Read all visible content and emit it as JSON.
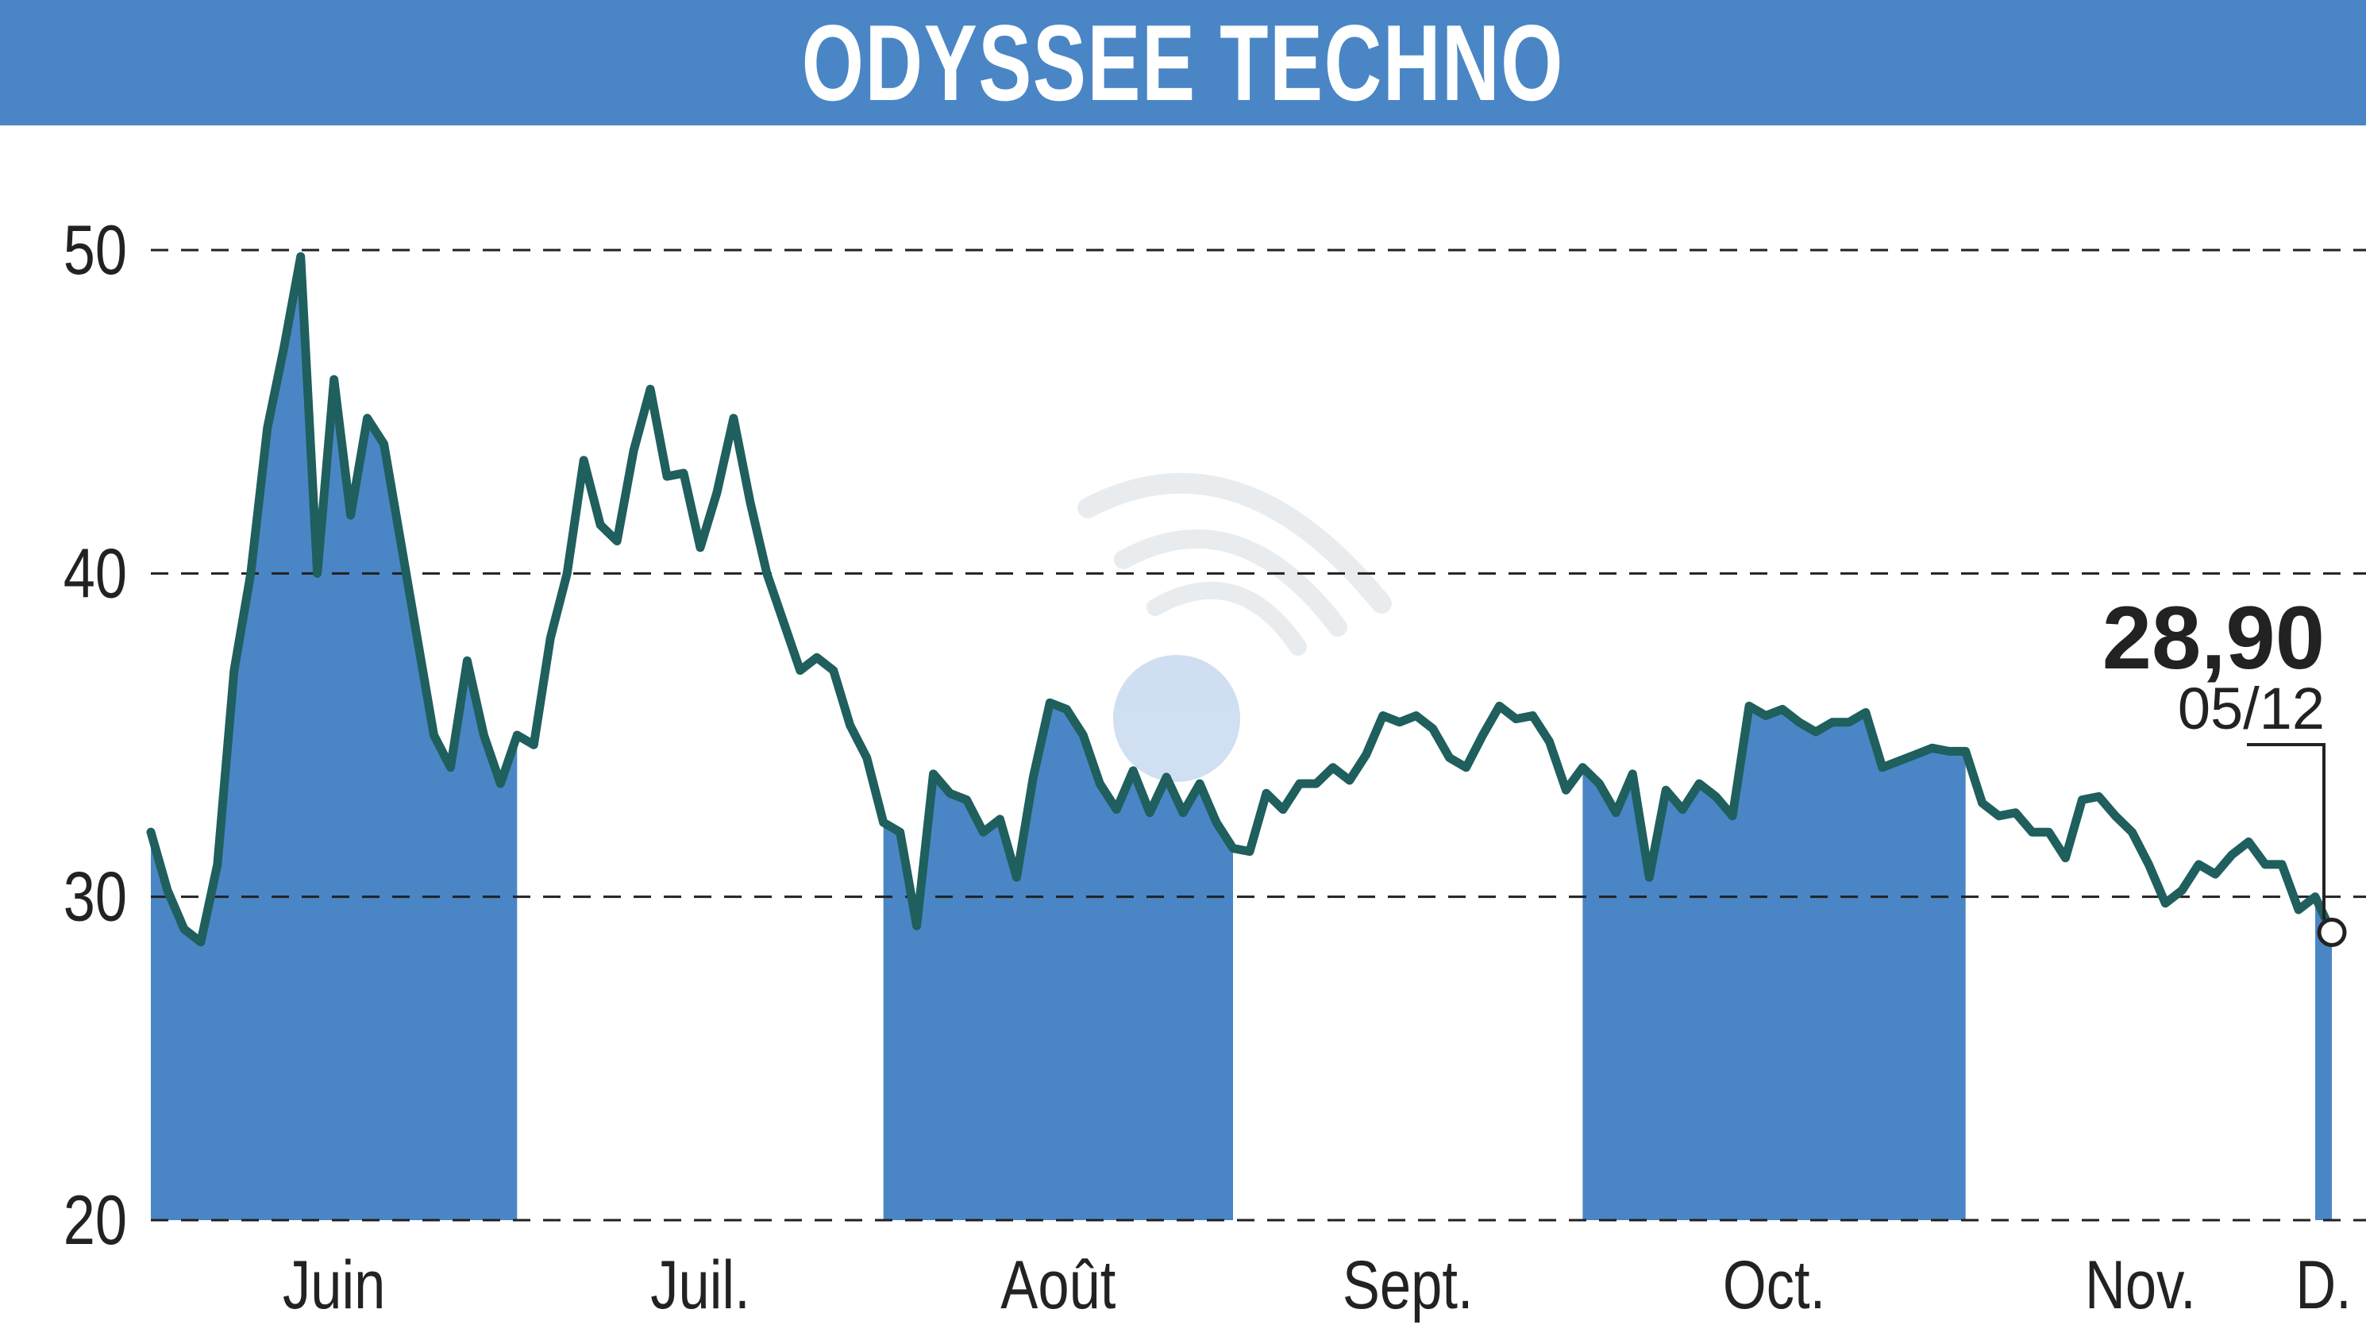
{
  "header": {
    "title": "ODYSSEE TECHNO"
  },
  "colors": {
    "banner": "#4a86c5",
    "band_fill": "#4a86c5",
    "line": "#1f5f5d",
    "grid": "#222222",
    "watermark": "#c9d7e8"
  },
  "chart_data": {
    "type": "line",
    "title": "ODYSSEE TECHNO",
    "xlabel": "",
    "ylabel": "",
    "ylim": [
      20,
      50
    ],
    "yticks": [
      20,
      30,
      40,
      50
    ],
    "grid": "horizontal dashed",
    "months": [
      {
        "label": "Juin",
        "start": 0,
        "end": 22,
        "shaded": true
      },
      {
        "label": "Juil.",
        "start": 22,
        "end": 44,
        "shaded": false
      },
      {
        "label": "Août",
        "start": 44,
        "end": 65,
        "shaded": true
      },
      {
        "label": "Sept.",
        "start": 65,
        "end": 86,
        "shaded": false
      },
      {
        "label": "Oct.",
        "start": 86,
        "end": 109,
        "shaded": true
      },
      {
        "label": "Nov.",
        "start": 109,
        "end": 130,
        "shaded": false
      },
      {
        "label": "D.",
        "start": 130,
        "end": 134,
        "shaded": true
      }
    ],
    "values": [
      32.0,
      30.2,
      29.0,
      28.6,
      31.0,
      37.0,
      40.0,
      44.5,
      47.0,
      49.8,
      40.0,
      46.0,
      41.8,
      44.8,
      44.0,
      41.0,
      38.0,
      35.0,
      34.0,
      37.3,
      35.0,
      33.5,
      35.0,
      34.7,
      38.0,
      40.0,
      43.5,
      41.5,
      41.0,
      43.8,
      45.7,
      43.0,
      43.1,
      40.8,
      42.5,
      44.8,
      42.2,
      40.0,
      38.5,
      37.0,
      37.4,
      37.0,
      35.3,
      34.3,
      32.3,
      32.0,
      29.1,
      33.8,
      33.2,
      33.0,
      32.0,
      32.4,
      30.6,
      33.7,
      36.0,
      35.8,
      35.0,
      33.5,
      32.7,
      33.9,
      32.6,
      33.7,
      32.6,
      33.5,
      32.3,
      31.5,
      31.4,
      33.2,
      32.7,
      33.5,
      33.5,
      34.0,
      33.6,
      34.4,
      35.6,
      35.4,
      35.6,
      35.2,
      34.3,
      34.0,
      35.0,
      35.9,
      35.5,
      35.6,
      34.8,
      33.3,
      34.0,
      33.5,
      32.6,
      33.8,
      30.6,
      33.3,
      32.7,
      33.5,
      33.1,
      32.5,
      35.9,
      35.6,
      35.8,
      35.4,
      35.1,
      35.4,
      35.4,
      35.7,
      34.0,
      34.2,
      34.4,
      34.6,
      34.5,
      34.5,
      32.9,
      32.5,
      32.6,
      32.0,
      32.0,
      31.2,
      33.0,
      33.1,
      32.5,
      32.0,
      31.0,
      29.8,
      30.2,
      31.0,
      30.7,
      31.3,
      31.7,
      31.0,
      31.0,
      29.6,
      30.0,
      28.9
    ],
    "last": {
      "value_label": "28,90",
      "date_label": "05/12"
    }
  }
}
